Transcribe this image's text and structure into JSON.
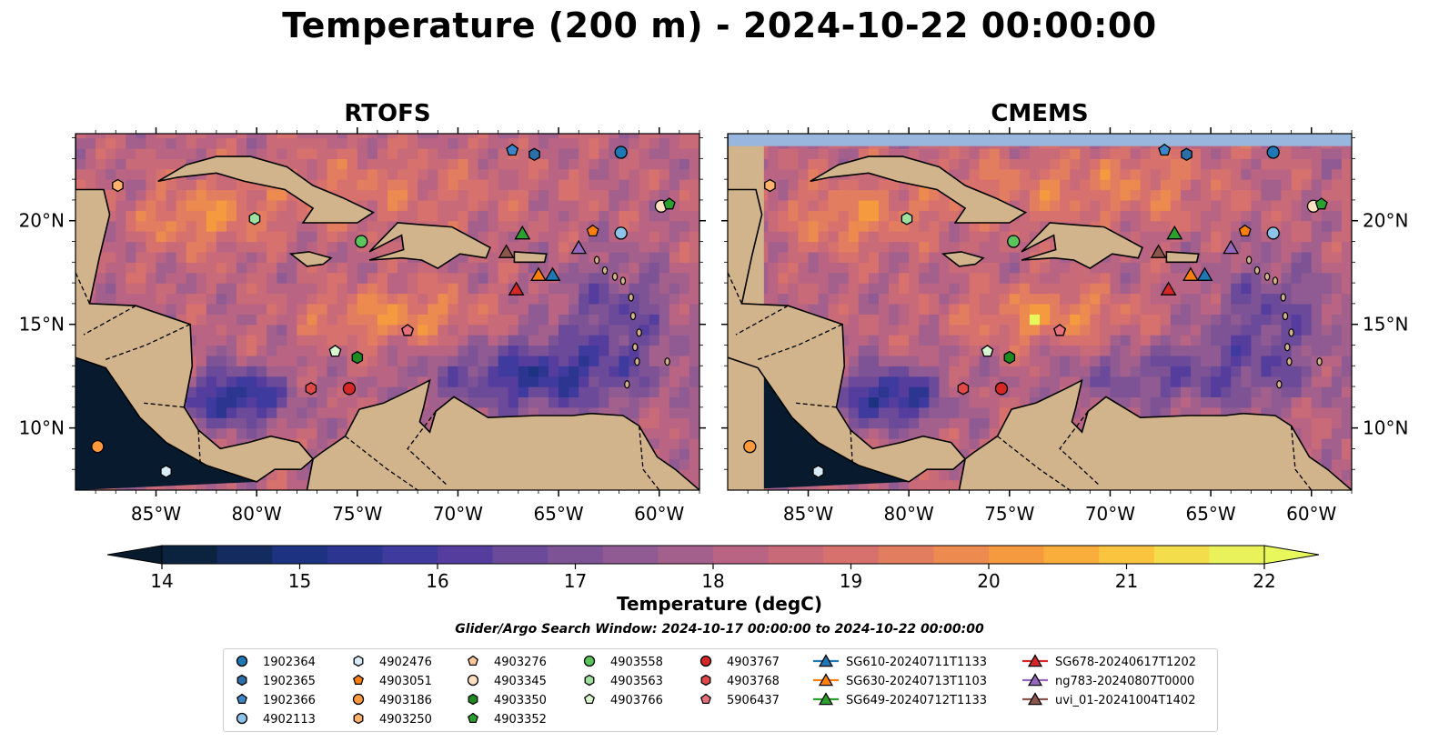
{
  "title": "Temperature (200 m) - 2024-10-22 00:00:00",
  "panels": [
    {
      "title": "RTOFS",
      "style": "rtofs"
    },
    {
      "title": "CMEMS",
      "style": "cmems"
    }
  ],
  "colorbar": {
    "label": "Temperature (degC)",
    "min": 14,
    "max": 22,
    "step": 0.5,
    "ticks": [
      "14",
      "15",
      "16",
      "17",
      "18",
      "19",
      "20",
      "21",
      "22"
    ],
    "colors": [
      "#0c2340",
      "#132b5e",
      "#1d3280",
      "#2c3590",
      "#3f3a9e",
      "#553d9e",
      "#6b4a9a",
      "#7d5396",
      "#8f5b92",
      "#a4608c",
      "#b86482",
      "#c96a78",
      "#d7716e",
      "#e27d5f",
      "#ec8a4f",
      "#f59a3f",
      "#f9ad3b",
      "#fac43f",
      "#f3dd4a",
      "#e9f25a"
    ],
    "under_color": "#081a2e",
    "over_color": "#e8f85c"
  },
  "map": {
    "lon_range": [
      -89,
      -58
    ],
    "lat_range": [
      7,
      24.2
    ],
    "lon_ticks": [
      "85°W",
      "80°W",
      "75°W",
      "70°W",
      "65°W",
      "60°W"
    ],
    "lat_ticks": [
      "10°N",
      "15°N",
      "20°N"
    ],
    "land_color": "#d2b48c",
    "shelf_color": "#98b6de"
  },
  "search_window": "Glider/Argo Search Window: 2024-10-17 00:00:00 to 2024-10-22 00:00:00",
  "legend": [
    {
      "label": "1902364",
      "marker": "circle",
      "color": "#1f77b4"
    },
    {
      "label": "1902365",
      "marker": "hexagon",
      "color": "#2d6fa8"
    },
    {
      "label": "1902366",
      "marker": "pentagon",
      "color": "#3a86c8"
    },
    {
      "label": "4902113",
      "marker": "circle",
      "color": "#8ec3ea"
    },
    {
      "label": "4902476",
      "marker": "hexagon",
      "color": "#d9ecf8"
    },
    {
      "label": "4903051",
      "marker": "pentagon",
      "color": "#ff7f0e"
    },
    {
      "label": "4903186",
      "marker": "circle",
      "color": "#ff9a3c"
    },
    {
      "label": "4903250",
      "marker": "hexagon",
      "color": "#ffb26b"
    },
    {
      "label": "4903276",
      "marker": "pentagon",
      "color": "#ffc995"
    },
    {
      "label": "4903345",
      "marker": "circle",
      "color": "#ffe0c2"
    },
    {
      "label": "4903350",
      "marker": "hexagon",
      "color": "#1f8a1f"
    },
    {
      "label": "4903352",
      "marker": "pentagon",
      "color": "#2ca02c"
    },
    {
      "label": "4903558",
      "marker": "circle",
      "color": "#5cc45c"
    },
    {
      "label": "4903563",
      "marker": "hexagon",
      "color": "#9ee09e"
    },
    {
      "label": "4903766",
      "marker": "pentagon",
      "color": "#d7f5d0"
    },
    {
      "label": "4903767",
      "marker": "circle",
      "color": "#d62728"
    },
    {
      "label": "4903768",
      "marker": "hexagon",
      "color": "#e04848"
    },
    {
      "label": "5906437",
      "marker": "pentagon",
      "color": "#e8707a"
    },
    {
      "label": "SG610-20240711T1133",
      "marker": "triangle",
      "color": "#1f77b4"
    },
    {
      "label": "SG630-20240713T1103",
      "marker": "triangle",
      "color": "#ff7f0e"
    },
    {
      "label": "SG649-20240712T1133",
      "marker": "triangle",
      "color": "#2ca02c"
    },
    {
      "label": "SG678-20240617T1202",
      "marker": "triangle",
      "color": "#d62728"
    },
    {
      "label": "ng783-20240807T0000",
      "marker": "triangle",
      "color": "#9467bd"
    },
    {
      "label": "uvi_01-20241004T1402",
      "marker": "triangle",
      "color": "#8c564b"
    }
  ],
  "chart_data": {
    "type": "heatmap",
    "title": "Temperature (200 m) - 2024-10-22 00:00:00",
    "variable": "Temperature (degC)",
    "colorbar_range": [
      14,
      22
    ],
    "x_range_lon": [
      -89,
      -58
    ],
    "y_range_lat": [
      7,
      24.2
    ],
    "argo_floats": [
      {
        "id": "1902364",
        "lon": -61.9,
        "lat": 23.3
      },
      {
        "id": "1902365",
        "lon": -66.2,
        "lat": 23.2
      },
      {
        "id": "1902366",
        "lon": -67.3,
        "lat": 23.4
      },
      {
        "id": "4902113",
        "lon": -61.9,
        "lat": 19.4
      },
      {
        "id": "4902476",
        "lon": -84.5,
        "lat": 7.9
      },
      {
        "id": "4903051",
        "lon": -63.3,
        "lat": 19.5
      },
      {
        "id": "4903186",
        "lon": -87.9,
        "lat": 9.1
      },
      {
        "id": "4903250",
        "lon": -86.9,
        "lat": 21.7
      },
      {
        "id": "4903276",
        "lon": -72.5,
        "lat": 14.7
      },
      {
        "id": "4903345",
        "lon": -59.9,
        "lat": 20.7
      },
      {
        "id": "4903350",
        "lon": -75.0,
        "lat": 13.4
      },
      {
        "id": "4903352",
        "lon": -59.5,
        "lat": 20.8
      },
      {
        "id": "4903558",
        "lon": -74.8,
        "lat": 19.0
      },
      {
        "id": "4903563",
        "lon": -80.1,
        "lat": 20.1
      },
      {
        "id": "4903766",
        "lon": -76.1,
        "lat": 13.7
      },
      {
        "id": "4903767",
        "lon": -75.4,
        "lat": 11.9
      },
      {
        "id": "4903768",
        "lon": -77.3,
        "lat": 11.9
      },
      {
        "id": "5906437",
        "lon": -72.5,
        "lat": 14.7
      }
    ],
    "gliders": [
      {
        "id": "SG610-20240711T1133",
        "lon": -65.3,
        "lat": 17.4
      },
      {
        "id": "SG630-20240713T1103",
        "lon": -66.0,
        "lat": 17.4
      },
      {
        "id": "SG649-20240712T1133",
        "lon": -66.8,
        "lat": 19.4
      },
      {
        "id": "SG678-20240617T1202",
        "lon": -67.1,
        "lat": 16.7
      },
      {
        "id": "ng783-20240807T0000",
        "lon": -64.0,
        "lat": 18.7
      },
      {
        "id": "uvi_01-20241004T1402",
        "lon": -67.6,
        "lat": 18.5
      }
    ]
  }
}
